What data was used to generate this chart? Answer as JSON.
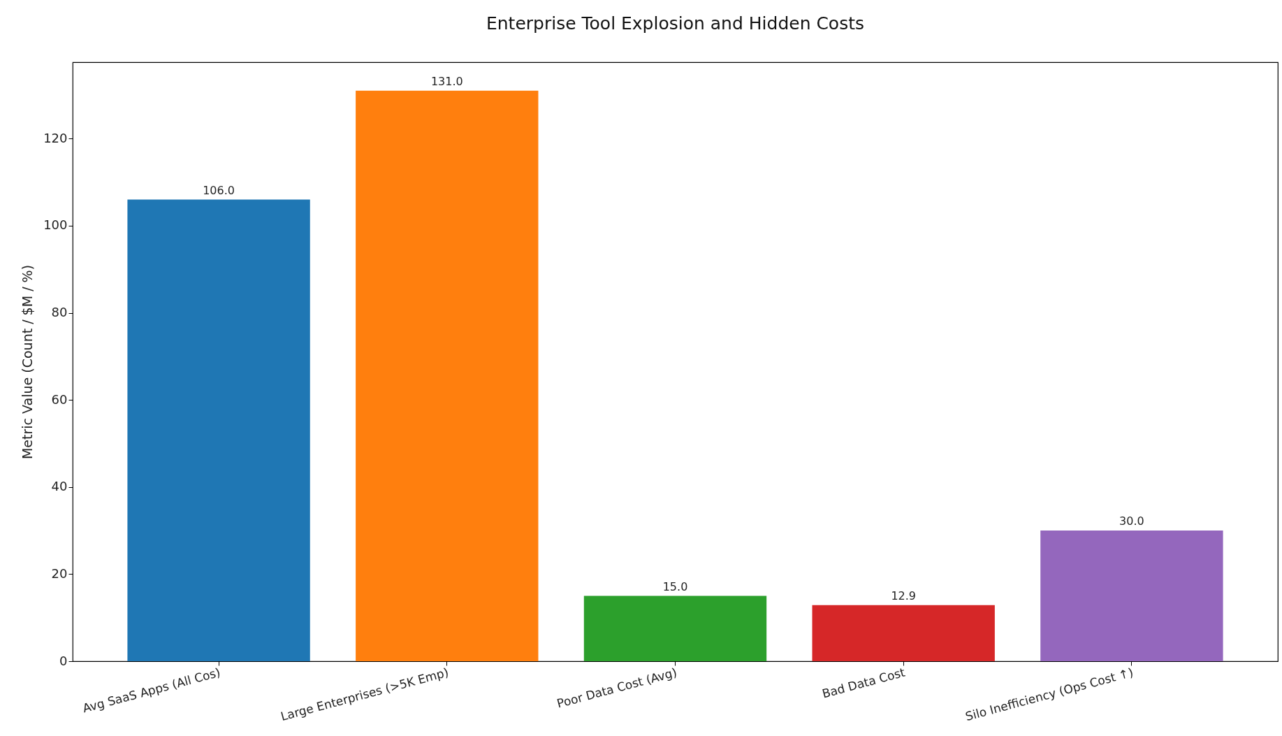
{
  "chart_data": {
    "type": "bar",
    "title": "Enterprise Tool Explosion and Hidden Costs",
    "ylabel": "Metric Value (Count / $M / %)",
    "categories": [
      "Avg SaaS Apps (All Cos)",
      "Large Enterprises (>5K Emp)",
      "Poor Data Cost (Avg)",
      "Bad Data Cost",
      "Silo Inefficiency (Ops Cost ↑)"
    ],
    "values": [
      106.0,
      131.0,
      15.0,
      12.9,
      30.0
    ],
    "colors": [
      "#1f77b4",
      "#ff7f0e",
      "#2ca02c",
      "#d62728",
      "#9467bd"
    ],
    "value_labels": [
      "106.0",
      "131.0",
      "15.0",
      "12.9",
      "30.0"
    ],
    "ylim": [
      0,
      137.55
    ],
    "yticks": [
      0,
      20,
      40,
      60,
      80,
      100,
      120
    ],
    "grid": false
  }
}
